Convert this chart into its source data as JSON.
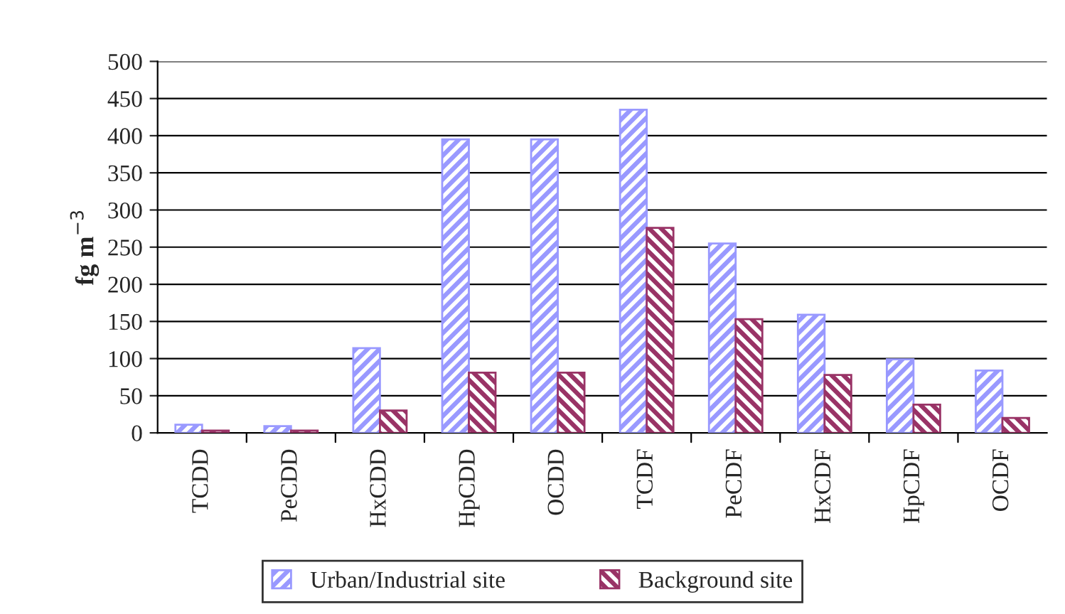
{
  "chart_data": {
    "type": "bar",
    "ylabel": "fg m$^{−3}$",
    "categories": [
      "TCDD",
      "PeCDD",
      "HxCDD",
      "HpCDD",
      "OCDD",
      "TCDF",
      "PeCDF",
      "HxCDF",
      "HpCDF",
      "OCDF"
    ],
    "series": [
      {
        "name": "Urban/Industrial site",
        "color": "#9999ff",
        "values": [
          11,
          9,
          114,
          395,
          395,
          435,
          255,
          159,
          99,
          84
        ]
      },
      {
        "name": "Background site",
        "color": "#993366",
        "values": [
          3,
          3,
          30,
          81,
          81,
          276,
          153,
          78,
          38,
          20
        ]
      }
    ],
    "ylim": [
      0,
      500
    ],
    "yticks": [
      0,
      50,
      100,
      150,
      200,
      250,
      300,
      350,
      400,
      450,
      500
    ],
    "grid": "y",
    "legend": "bottom"
  }
}
